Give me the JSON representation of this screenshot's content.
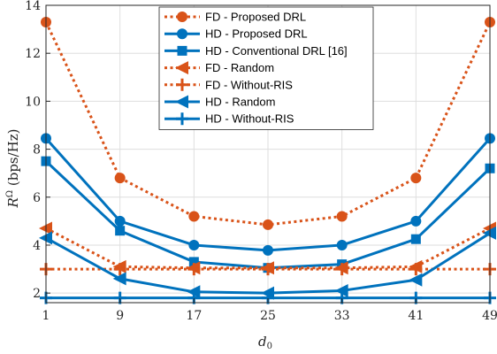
{
  "chart_data": {
    "type": "line",
    "x": [
      1,
      9,
      17,
      25,
      33,
      41,
      49
    ],
    "xlabel": "d",
    "xlabel_sub": "0",
    "ylabel_symbol": "R",
    "ylabel_sup": "Ω",
    "ylabel_unit": "(bps/Hz)",
    "xlim": [
      1,
      49
    ],
    "ylim": [
      1.6,
      14
    ],
    "xticks": [
      "1",
      "9",
      "17",
      "25",
      "33",
      "41",
      "49"
    ],
    "yticks": [
      "2",
      "4",
      "6",
      "8",
      "10",
      "12",
      "14"
    ],
    "grid": true,
    "legend_position": "top-center",
    "series": [
      {
        "name": "FD - Proposed DRL",
        "color": "#d95319",
        "dash": "dotted",
        "marker": "circle",
        "values": [
          13.3,
          6.8,
          5.2,
          4.85,
          5.2,
          6.8,
          13.3
        ]
      },
      {
        "name": "HD - Proposed DRL",
        "color": "#0072bd",
        "dash": "solid",
        "marker": "circle",
        "values": [
          8.45,
          5.0,
          4.0,
          3.78,
          4.0,
          5.0,
          8.45
        ]
      },
      {
        "name": "HD - Conventional DRL [16]",
        "color": "#0072bd",
        "dash": "solid",
        "marker": "square",
        "values": [
          7.5,
          4.6,
          3.3,
          3.05,
          3.2,
          4.25,
          7.2
        ]
      },
      {
        "name": "FD - Random",
        "color": "#d95319",
        "dash": "dotted",
        "marker": "triangle-left",
        "values": [
          4.7,
          3.1,
          3.05,
          3.05,
          3.05,
          3.1,
          4.7
        ]
      },
      {
        "name": "FD - Without-RIS",
        "color": "#d95319",
        "dash": "dotted",
        "marker": "plus",
        "values": [
          3.0,
          3.0,
          3.0,
          3.0,
          3.0,
          3.0,
          3.0
        ]
      },
      {
        "name": "HD - Random",
        "color": "#0072bd",
        "dash": "solid",
        "marker": "triangle-left",
        "values": [
          4.3,
          2.6,
          2.05,
          2.0,
          2.1,
          2.55,
          4.5
        ]
      },
      {
        "name": "HD - Without-RIS",
        "color": "#0072bd",
        "dash": "solid",
        "marker": "plus",
        "values": [
          1.8,
          1.8,
          1.8,
          1.8,
          1.8,
          1.8,
          1.8
        ]
      }
    ]
  }
}
